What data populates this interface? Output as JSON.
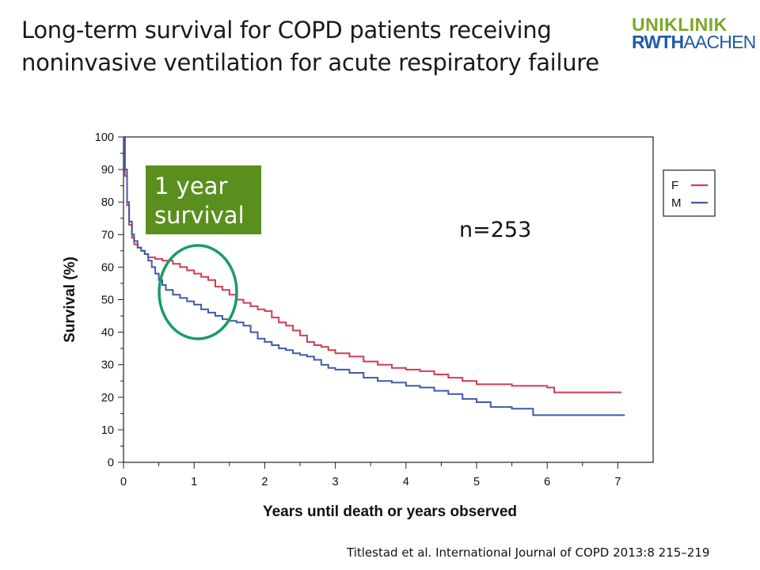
{
  "slide": {
    "title_line1": "Long-term survival for COPD patients receiving",
    "title_line2": "noninvasive ventilation for acute respiratory failure",
    "logo_line1": "UNIKLINIK",
    "logo_line2_bold": "RWTH",
    "logo_line2_light": "AACHEN",
    "citation": "Titlestad et al. International Journal of COPD 2013:8 215–219",
    "logo_colors": {
      "green": "#7aa829",
      "blue": "#1f5aa8"
    }
  },
  "annotations": {
    "box_text": [
      "1 year",
      "survival"
    ],
    "box_color": "#5a8f1e",
    "n_label": "n=253",
    "ellipse_color": "#1a9a6a"
  },
  "chart_data": {
    "type": "line",
    "title": "",
    "xlabel": "Years until death or years observed",
    "ylabel": "Survival (%)",
    "xlim": [
      0,
      7.5
    ],
    "ylim": [
      0,
      100
    ],
    "xticks": [
      0,
      1,
      2,
      3,
      4,
      5,
      6,
      7
    ],
    "yticks": [
      0,
      10,
      20,
      30,
      40,
      50,
      60,
      70,
      80,
      90,
      100
    ],
    "grid": false,
    "legend_position": "top-right",
    "series": [
      {
        "name": "F",
        "color": "#d23c50",
        "x": [
          0,
          0.02,
          0.05,
          0.08,
          0.12,
          0.15,
          0.2,
          0.25,
          0.3,
          0.35,
          0.45,
          0.55,
          0.7,
          0.8,
          0.9,
          1.0,
          1.1,
          1.2,
          1.3,
          1.4,
          1.5,
          1.6,
          1.7,
          1.8,
          1.9,
          2.0,
          2.1,
          2.2,
          2.3,
          2.4,
          2.5,
          2.6,
          2.7,
          2.8,
          2.9,
          3.0,
          3.2,
          3.4,
          3.6,
          3.8,
          4.0,
          4.2,
          4.4,
          4.6,
          4.8,
          5.0,
          5.5,
          6.0,
          6.1,
          6.5,
          7.05
        ],
        "y": [
          100,
          88,
          79,
          73,
          69,
          67,
          66,
          65,
          64,
          63,
          62.5,
          62,
          61,
          60,
          59,
          58,
          57,
          56,
          54,
          53,
          51.5,
          50,
          49,
          48,
          47,
          46.5,
          44.5,
          43,
          42,
          40.5,
          39,
          37,
          36,
          35.5,
          34.5,
          33.5,
          32.5,
          31,
          30,
          29,
          28.5,
          28,
          27,
          26,
          25,
          24,
          23.5,
          23,
          21.5,
          21.5,
          21.5
        ]
      },
      {
        "name": "M",
        "color": "#3f5aa8",
        "x": [
          0,
          0.02,
          0.05,
          0.08,
          0.12,
          0.15,
          0.2,
          0.25,
          0.3,
          0.35,
          0.4,
          0.45,
          0.5,
          0.55,
          0.6,
          0.7,
          0.8,
          0.9,
          1.0,
          1.1,
          1.2,
          1.3,
          1.4,
          1.5,
          1.6,
          1.7,
          1.8,
          1.9,
          2.0,
          2.1,
          2.2,
          2.3,
          2.4,
          2.5,
          2.6,
          2.7,
          2.8,
          2.9,
          3.0,
          3.2,
          3.4,
          3.6,
          3.8,
          4.0,
          4.2,
          4.4,
          4.6,
          4.8,
          5.0,
          5.2,
          5.5,
          5.8,
          6.0,
          6.5,
          7.1
        ],
        "y": [
          100,
          90,
          80,
          74,
          70,
          68,
          66,
          65,
          64,
          62,
          60,
          58,
          56,
          54.5,
          53,
          51.5,
          50.5,
          49.5,
          48.5,
          47,
          46,
          45,
          44,
          43.5,
          43,
          42,
          40,
          38,
          37,
          36,
          35,
          34.5,
          33.5,
          33,
          32.5,
          31.5,
          30,
          29,
          28.5,
          27.5,
          26,
          25,
          24.5,
          23.5,
          23,
          22,
          21,
          19.5,
          18.5,
          17,
          16.5,
          14.5,
          14.5,
          14.5,
          14.5
        ]
      }
    ]
  }
}
